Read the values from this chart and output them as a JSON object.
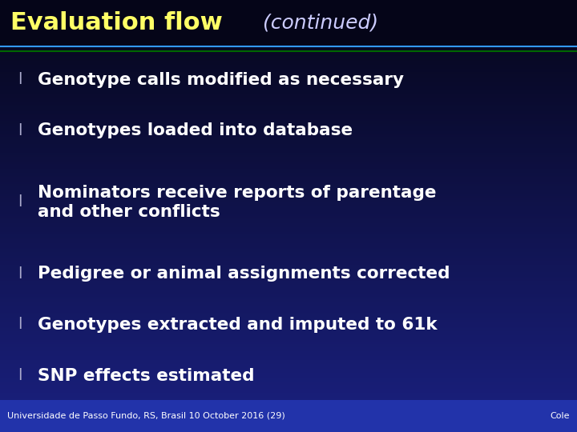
{
  "title_part1": "Evaluation flow",
  "title_part2": " (continued)",
  "title_part1_color": "#ffff66",
  "title_part2_color": "#ccccff",
  "title_fontsize": 22,
  "title_part2_fontsize": 18,
  "bg_color_top": "#050518",
  "bg_color_bottom": "#1a2080",
  "header_line_color1": "#3399ff",
  "header_line_color2": "#006600",
  "bullet_color": "#aaaacc",
  "bullet_text_color": "#ffffff",
  "bullet_fontsize": 15.5,
  "bullet_char": "l",
  "bullets": [
    "Genotype calls modified as necessary",
    "Genotypes loaded into database",
    "Nominators receive reports of parentage\nand other conflicts",
    "Pedigree or animal assignments corrected",
    "Genotypes extracted and imputed to 61k",
    "SNP effects estimated"
  ],
  "footer_left": "Universidade de Passo Fundo, RS, Brasil 10 October 2016 (29)",
  "footer_right": "Cole",
  "footer_color": "#ffffff",
  "footer_fontsize": 8,
  "footer_bg_color": "#2233aa",
  "fig_width": 7.2,
  "fig_height": 5.4,
  "dpi": 100
}
